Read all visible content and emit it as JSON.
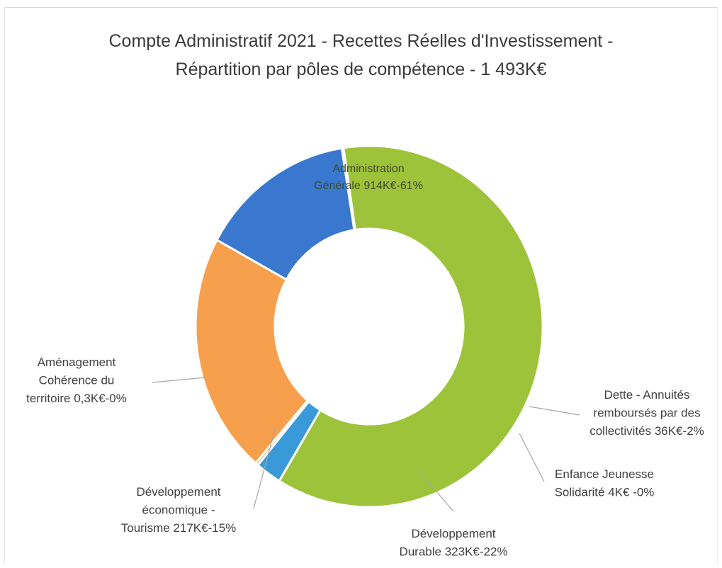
{
  "chart_data": {
    "type": "pie",
    "style": "donut",
    "title": [
      "Compte Administratif 2021 - Recettes Réelles d'Investissement -",
      "Répartition par pôles de compétence - 1 493K€"
    ],
    "slices": [
      {
        "name": "Administration Générale",
        "value": 914,
        "percent": 61,
        "color": "#9dc33b",
        "label_lines": [
          "Administration",
          "Générale 914K€-61%"
        ]
      },
      {
        "name": "Dette - Annuités remboursés par des collectivités",
        "value": 36,
        "percent": 2,
        "color": "#3a9ad9",
        "label_lines": [
          "Dette - Annuités",
          "remboursés par des",
          "collectivités 36K€-2%"
        ]
      },
      {
        "name": "Enfance Jeunesse Solidarité",
        "value": 4,
        "percent": 0,
        "color": "#f1a14c",
        "label_lines": [
          "Enfance Jeunesse",
          "Solidarité 4K€ -0%"
        ]
      },
      {
        "name": "Développement Durable",
        "value": 323,
        "percent": 22,
        "color": "#f6a04d",
        "label_lines": [
          "Développement",
          "Durable 323K€-22%"
        ]
      },
      {
        "name": "Développement économique - Tourisme",
        "value": 217,
        "percent": 15,
        "color": "#3a78cf",
        "label_lines": [
          "Développement",
          "économique -",
          "Tourisme 217K€-15%"
        ]
      },
      {
        "name": "Aménagement Cohérence du territoire",
        "value": 0.3,
        "percent": 0,
        "color": "#6ea34a",
        "label_lines": [
          "Aménagement",
          "Cohérence du",
          "territoire 0,3K€-0%"
        ]
      }
    ]
  }
}
